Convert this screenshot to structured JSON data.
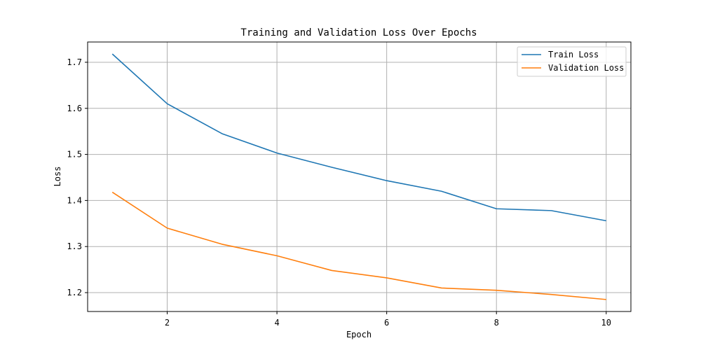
{
  "chart_data": {
    "type": "line",
    "title": "Training and Validation Loss Over Epochs",
    "xlabel": "Epoch",
    "ylabel": "Loss",
    "xlim": [
      0.55,
      10.45
    ],
    "ylim": [
      1.159,
      1.744
    ],
    "xticks": [
      2,
      4,
      6,
      8,
      10
    ],
    "xtick_labels": [
      "2",
      "4",
      "6",
      "8",
      "10"
    ],
    "yticks": [
      1.2,
      1.3,
      1.4,
      1.5,
      1.6,
      1.7
    ],
    "ytick_labels": [
      "1.2",
      "1.3",
      "1.4",
      "1.5",
      "1.6",
      "1.7"
    ],
    "grid": true,
    "legend_position": "top-right",
    "x": [
      1,
      2,
      3,
      4,
      5,
      6,
      7,
      8,
      9,
      10
    ],
    "series": [
      {
        "name": "Train Loss",
        "color": "#1f77b4",
        "values": [
          1.718,
          1.61,
          1.545,
          1.503,
          1.472,
          1.443,
          1.42,
          1.382,
          1.378,
          1.356
        ]
      },
      {
        "name": "Validation Loss",
        "color": "#ff7f0e",
        "values": [
          1.418,
          1.34,
          1.305,
          1.28,
          1.248,
          1.232,
          1.21,
          1.205,
          1.196,
          1.185
        ]
      }
    ]
  }
}
